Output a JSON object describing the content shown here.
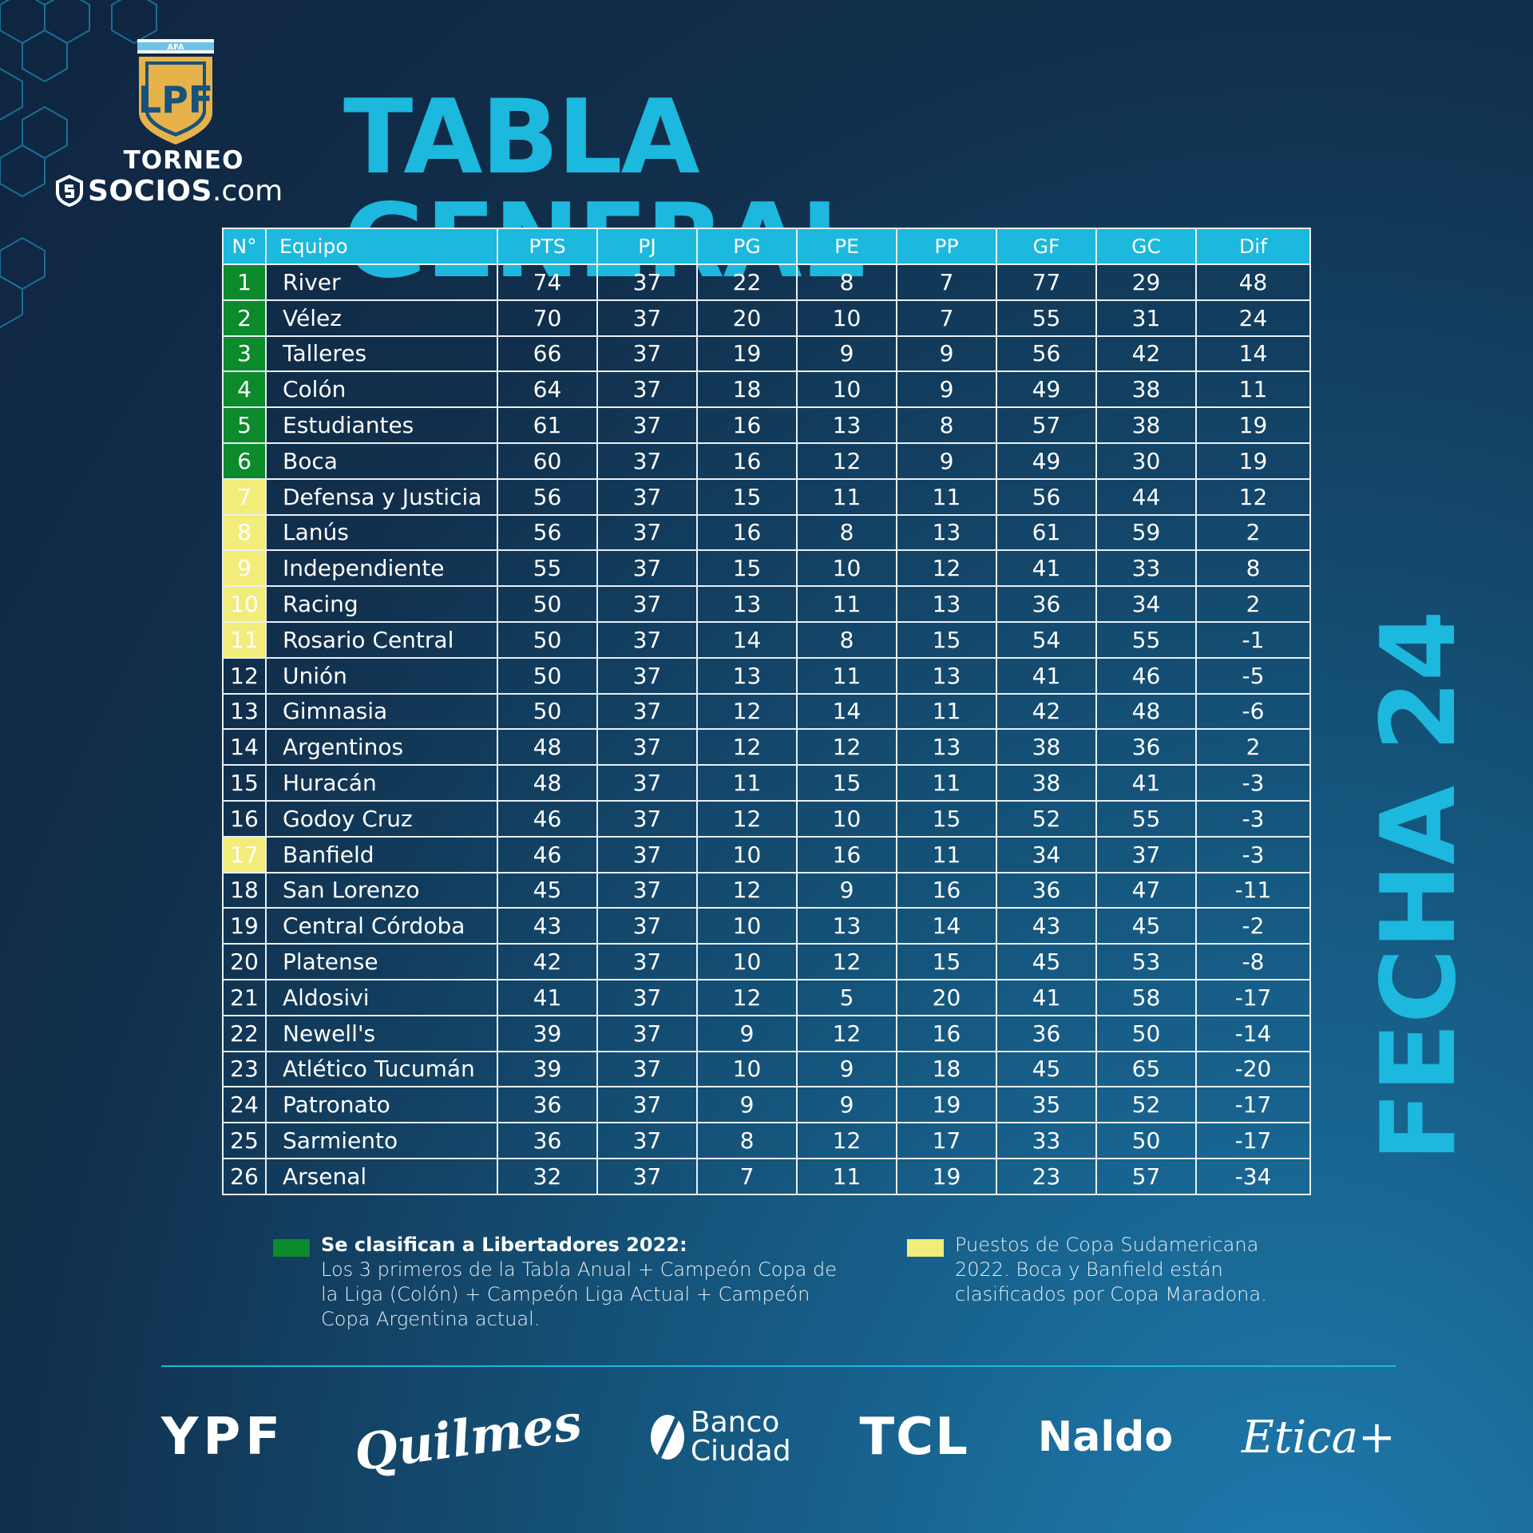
{
  "logo": {
    "afa_label": "AFA",
    "shield_letters": "LPF",
    "line1": "TORNEO",
    "line2_bold": "SOCIOS",
    "line2_light": ".com"
  },
  "title": "TABLA GENERAL",
  "round": "FECHA 24",
  "table": {
    "headers": [
      "N°",
      "Equipo",
      "PTS",
      "PJ",
      "PG",
      "PE",
      "PP",
      "GF",
      "GC",
      "Dif"
    ],
    "rows": [
      {
        "pos": "1",
        "team": "River",
        "pts": "74",
        "pj": "37",
        "pg": "22",
        "pe": "8",
        "pp": "7",
        "gf": "77",
        "gc": "29",
        "dif": "48",
        "zone": "lib"
      },
      {
        "pos": "2",
        "team": "Vélez",
        "pts": "70",
        "pj": "37",
        "pg": "20",
        "pe": "10",
        "pp": "7",
        "gf": "55",
        "gc": "31",
        "dif": "24",
        "zone": "lib"
      },
      {
        "pos": "3",
        "team": "Talleres",
        "pts": "66",
        "pj": "37",
        "pg": "19",
        "pe": "9",
        "pp": "9",
        "gf": "56",
        "gc": "42",
        "dif": "14",
        "zone": "lib"
      },
      {
        "pos": "4",
        "team": "Colón",
        "pts": "64",
        "pj": "37",
        "pg": "18",
        "pe": "10",
        "pp": "9",
        "gf": "49",
        "gc": "38",
        "dif": "11",
        "zone": "lib"
      },
      {
        "pos": "5",
        "team": "Estudiantes",
        "pts": "61",
        "pj": "37",
        "pg": "16",
        "pe": "13",
        "pp": "8",
        "gf": "57",
        "gc": "38",
        "dif": "19",
        "zone": "lib"
      },
      {
        "pos": "6",
        "team": "Boca",
        "pts": "60",
        "pj": "37",
        "pg": "16",
        "pe": "12",
        "pp": "9",
        "gf": "49",
        "gc": "30",
        "dif": "19",
        "zone": "lib"
      },
      {
        "pos": "7",
        "team": "Defensa y Justicia",
        "pts": "56",
        "pj": "37",
        "pg": "15",
        "pe": "11",
        "pp": "11",
        "gf": "56",
        "gc": "44",
        "dif": "12",
        "zone": "sud"
      },
      {
        "pos": "8",
        "team": "Lanús",
        "pts": "56",
        "pj": "37",
        "pg": "16",
        "pe": "8",
        "pp": "13",
        "gf": "61",
        "gc": "59",
        "dif": "2",
        "zone": "sud"
      },
      {
        "pos": "9",
        "team": "Independiente",
        "pts": "55",
        "pj": "37",
        "pg": "15",
        "pe": "10",
        "pp": "12",
        "gf": "41",
        "gc": "33",
        "dif": "8",
        "zone": "sud"
      },
      {
        "pos": "10",
        "team": "Racing",
        "pts": "50",
        "pj": "37",
        "pg": "13",
        "pe": "11",
        "pp": "13",
        "gf": "36",
        "gc": "34",
        "dif": "2",
        "zone": "sud"
      },
      {
        "pos": "11",
        "team": "Rosario Central",
        "pts": "50",
        "pj": "37",
        "pg": "14",
        "pe": "8",
        "pp": "15",
        "gf": "54",
        "gc": "55",
        "dif": "-1",
        "zone": "sud"
      },
      {
        "pos": "12",
        "team": "Unión",
        "pts": "50",
        "pj": "37",
        "pg": "13",
        "pe": "11",
        "pp": "13",
        "gf": "41",
        "gc": "46",
        "dif": "-5",
        "zone": ""
      },
      {
        "pos": "13",
        "team": "Gimnasia",
        "pts": "50",
        "pj": "37",
        "pg": "12",
        "pe": "14",
        "pp": "11",
        "gf": "42",
        "gc": "48",
        "dif": "-6",
        "zone": ""
      },
      {
        "pos": "14",
        "team": "Argentinos",
        "pts": "48",
        "pj": "37",
        "pg": "12",
        "pe": "12",
        "pp": "13",
        "gf": "38",
        "gc": "36",
        "dif": "2",
        "zone": ""
      },
      {
        "pos": "15",
        "team": "Huracán",
        "pts": "48",
        "pj": "37",
        "pg": "11",
        "pe": "15",
        "pp": "11",
        "gf": "38",
        "gc": "41",
        "dif": "-3",
        "zone": ""
      },
      {
        "pos": "16",
        "team": "Godoy Cruz",
        "pts": "46",
        "pj": "37",
        "pg": "12",
        "pe": "10",
        "pp": "15",
        "gf": "52",
        "gc": "55",
        "dif": "-3",
        "zone": ""
      },
      {
        "pos": "17",
        "team": "Banfield",
        "pts": "46",
        "pj": "37",
        "pg": "10",
        "pe": "16",
        "pp": "11",
        "gf": "34",
        "gc": "37",
        "dif": "-3",
        "zone": "sud"
      },
      {
        "pos": "18",
        "team": "San Lorenzo",
        "pts": "45",
        "pj": "37",
        "pg": "12",
        "pe": "9",
        "pp": "16",
        "gf": "36",
        "gc": "47",
        "dif": "-11",
        "zone": ""
      },
      {
        "pos": "19",
        "team": "Central Córdoba",
        "pts": "43",
        "pj": "37",
        "pg": "10",
        "pe": "13",
        "pp": "14",
        "gf": "43",
        "gc": "45",
        "dif": "-2",
        "zone": ""
      },
      {
        "pos": "20",
        "team": "Platense",
        "pts": "42",
        "pj": "37",
        "pg": "10",
        "pe": "12",
        "pp": "15",
        "gf": "45",
        "gc": "53",
        "dif": "-8",
        "zone": ""
      },
      {
        "pos": "21",
        "team": "Aldosivi",
        "pts": "41",
        "pj": "37",
        "pg": "12",
        "pe": "5",
        "pp": "20",
        "gf": "41",
        "gc": "58",
        "dif": "-17",
        "zone": ""
      },
      {
        "pos": "22",
        "team": "Newell's",
        "pts": "39",
        "pj": "37",
        "pg": "9",
        "pe": "12",
        "pp": "16",
        "gf": "36",
        "gc": "50",
        "dif": "-14",
        "zone": ""
      },
      {
        "pos": "23",
        "team": "Atlético Tucumán",
        "pts": "39",
        "pj": "37",
        "pg": "10",
        "pe": "9",
        "pp": "18",
        "gf": "45",
        "gc": "65",
        "dif": "-20",
        "zone": ""
      },
      {
        "pos": "24",
        "team": "Patronato",
        "pts": "36",
        "pj": "37",
        "pg": "9",
        "pe": "9",
        "pp": "19",
        "gf": "35",
        "gc": "52",
        "dif": "-17",
        "zone": ""
      },
      {
        "pos": "25",
        "team": "Sarmiento",
        "pts": "36",
        "pj": "37",
        "pg": "8",
        "pe": "12",
        "pp": "17",
        "gf": "33",
        "gc": "50",
        "dif": "-17",
        "zone": ""
      },
      {
        "pos": "26",
        "team": "Arsenal",
        "pts": "32",
        "pj": "37",
        "pg": "7",
        "pe": "11",
        "pp": "19",
        "gf": "23",
        "gc": "57",
        "dif": "-34",
        "zone": ""
      }
    ]
  },
  "legend": {
    "libertadores": {
      "title": "Se clasifican a Libertadores 2022:",
      "text": "Los 3 primeros de la Tabla Anual  + Campeón Copa de la Liga (Colón) + Campeón Liga Actual + Campeón Copa Argentina actual.",
      "color": "#0c8a2c"
    },
    "sudamericana": {
      "text": "Puestos de Copa Sudamericana 2022. Boca y Banfield están clasificados por Copa Maradona.",
      "color": "#f2ec7a"
    }
  },
  "sponsors": [
    "YPF",
    "Quilmes",
    "Banco",
    "Ciudad",
    "TCL",
    "Naldo",
    "Etica+"
  ],
  "colors": {
    "accent": "#1cb8dd",
    "background_dark": "#0f2540",
    "background_light": "#1f7fb3",
    "libertadores_zone": "#0c8a2c",
    "sudamericana_zone": "#f2ec7a"
  }
}
